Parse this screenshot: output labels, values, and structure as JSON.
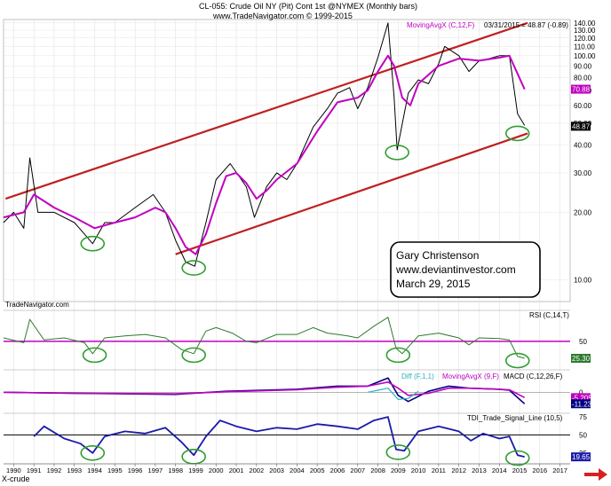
{
  "header": {
    "line1": "CL-055:  Crude Oil NY (Pit) Cont 1st @NYMEX  (Monthly bars)",
    "line2": "www.TradeNavigator.com © 1999-2015"
  },
  "chart_data": [
    {
      "type": "line",
      "panel": "price",
      "title": "CL-055: Crude Oil NY (Pit) Cont 1st @NYMEX (Monthly bars)",
      "scale": "log",
      "ylim": [
        8,
        145
      ],
      "xlim": [
        1989.5,
        2017.5
      ],
      "y_ticks": [
        10.0,
        20.0,
        30.0,
        40.0,
        50.0,
        60.0,
        70.0,
        80.0,
        90.0,
        100.0,
        110.0,
        120.0,
        130.0,
        140.0
      ],
      "y_tick_labels": [
        "10.00",
        "20.00",
        "30.00",
        "40.00",
        "50.00",
        "60.00",
        "70.00",
        "80.00",
        "90.00",
        "100.00",
        "110.00",
        "120.00",
        "130.00",
        "140.00"
      ],
      "series": [
        {
          "name": "Crude Oil",
          "color": "#000000",
          "x": [
            1989.5,
            1990.0,
            1990.5,
            1990.8,
            1991.2,
            1992.0,
            1993.0,
            1993.5,
            1993.9,
            1994.5,
            1995.0,
            1996.0,
            1996.9,
            1997.5,
            1998.0,
            1998.5,
            1998.95,
            1999.5,
            2000.0,
            2000.7,
            2001.5,
            2001.9,
            2002.5,
            2003.0,
            2003.5,
            2004.0,
            2004.8,
            2005.5,
            2006.0,
            2006.6,
            2007.0,
            2007.5,
            2008.0,
            2008.5,
            2008.8,
            2008.95,
            2009.5,
            2010.0,
            2010.5,
            2011.0,
            2011.3,
            2012.0,
            2012.5,
            2013.0,
            2013.5,
            2014.0,
            2014.5,
            2014.9,
            2015.25
          ],
          "values": [
            18,
            20,
            17,
            35,
            20,
            20,
            18,
            16,
            14.5,
            18,
            18,
            21,
            24,
            20,
            15,
            12,
            11.5,
            18,
            28,
            33,
            26,
            19,
            26,
            30,
            28,
            33,
            48,
            58,
            68,
            72,
            58,
            72,
            98,
            140,
            65,
            38,
            68,
            78,
            75,
            92,
            110,
            100,
            85,
            95,
            97,
            100,
            100,
            55,
            48.87
          ]
        },
        {
          "name": "MovingAvgX (C,12,F)",
          "color": "#c000c0",
          "x": [
            1989.5,
            1990.5,
            1991.0,
            1992.0,
            1993.0,
            1994.0,
            1995.0,
            1996.0,
            1997.0,
            1997.5,
            1998.0,
            1998.5,
            1999.0,
            1999.5,
            2000.0,
            2000.5,
            2001.0,
            2001.5,
            2002.0,
            2002.5,
            2003.0,
            2004.0,
            2005.0,
            2006.0,
            2007.0,
            2007.5,
            2008.0,
            2008.5,
            2008.8,
            2009.2,
            2009.6,
            2010.0,
            2011.0,
            2012.0,
            2013.0,
            2014.0,
            2014.5,
            2015.25
          ],
          "values": [
            19,
            20,
            24,
            21,
            19,
            17,
            18,
            19,
            21,
            20,
            17,
            14,
            13,
            16,
            22,
            29,
            30,
            27,
            23,
            25,
            28,
            33,
            46,
            62,
            65,
            70,
            85,
            100,
            90,
            65,
            60,
            75,
            90,
            97,
            95,
            98,
            100,
            70.88
          ]
        }
      ],
      "trendlines": [
        {
          "name": "upper channel",
          "color": "#c02020",
          "x": [
            1989.6,
            2015.4
          ],
          "values": [
            23,
            140
          ]
        },
        {
          "name": "lower channel",
          "color": "#c02020",
          "x": [
            1998.0,
            2015.4
          ],
          "values": [
            13,
            45
          ]
        }
      ],
      "highlight_circles_at": [
        {
          "x": 1993.9,
          "y": 14.5
        },
        {
          "x": 1998.9,
          "y": 11.3
        },
        {
          "x": 2008.95,
          "y": 37
        },
        {
          "x": 2014.9,
          "y": 45
        }
      ],
      "annotations": [
        {
          "text": "MovingAvgX (C,12,F)",
          "color": "#c000c0"
        },
        {
          "text": "03/31/2015 = 48.87 (-0.89)",
          "color": "#000000"
        },
        {
          "text": "70.88",
          "color": "#c000c0",
          "badge": true
        },
        {
          "text": "48.87",
          "color": "#ffffff",
          "badge": true,
          "badge_color": "#000000"
        },
        {
          "text": "TradeNavigator.com",
          "color": "#000000"
        }
      ],
      "textbox": [
        "Gary Christenson",
        "www.deviantinvestor.com",
        "March 29, 2015"
      ]
    },
    {
      "type": "line",
      "panel": "rsi",
      "title": "RSI (C,14,T)",
      "ylim": [
        15,
        95
      ],
      "y_ticks": [
        50
      ],
      "y_tick_labels": [
        "50"
      ],
      "reference_line": {
        "value": 50,
        "color": "#c000c0"
      },
      "series": [
        {
          "name": "RSI (C,14,T)",
          "color": "#2d7a2d",
          "x": [
            1989.5,
            1990.5,
            1990.8,
            1991.5,
            1992.5,
            1993.5,
            1993.9,
            1994.5,
            1995.5,
            1996.5,
            1997.5,
            1998.3,
            1998.9,
            1999.5,
            2000.0,
            2000.8,
            2001.5,
            2002.0,
            2003.0,
            2004.0,
            2004.8,
            2005.5,
            2006.5,
            2007.0,
            2007.8,
            2008.5,
            2008.9,
            2009.2,
            2010.0,
            2011.0,
            2012.0,
            2012.5,
            2013.0,
            2014.0,
            2014.5,
            2014.9,
            2015.25
          ],
          "values": [
            55,
            48,
            82,
            52,
            55,
            48,
            32,
            55,
            58,
            60,
            55,
            38,
            32,
            65,
            70,
            62,
            50,
            48,
            60,
            60,
            70,
            62,
            58,
            55,
            72,
            85,
            40,
            32,
            58,
            62,
            55,
            45,
            55,
            54,
            52,
            28,
            25.3
          ]
        }
      ],
      "highlight_circles_at": [
        {
          "x": 1994.0,
          "y": 30
        },
        {
          "x": 1998.9,
          "y": 30
        },
        {
          "x": 2009.0,
          "y": 30
        },
        {
          "x": 2014.9,
          "y": 22
        }
      ],
      "last_value_label": "25.30"
    },
    {
      "type": "line",
      "panel": "macd",
      "title": "MACD (C,12,26,F)",
      "ylim": [
        -24,
        22
      ],
      "y_ticks": [
        0,
        -5.205
      ],
      "y_tick_labels": [
        "0",
        "-5.2050"
      ],
      "series": [
        {
          "name": "MACD (C,12,26,F)",
          "color": "#000080",
          "x": [
            1989.5,
            1993.0,
            1998.0,
            2000.5,
            2004.0,
            2006.0,
            2007.5,
            2008.5,
            2009.0,
            2009.5,
            2010.5,
            2011.5,
            2012.5,
            2014.0,
            2014.5,
            2015.25
          ],
          "values": [
            0,
            -1,
            -2,
            1,
            3,
            6,
            6,
            14,
            -3,
            -9,
            1,
            6,
            4,
            3,
            2,
            -11.23
          ]
        },
        {
          "name": "MovingAvgX (9,F)",
          "color": "#c000c0",
          "x": [
            1989.5,
            1993.0,
            1998.0,
            2000.5,
            2004.0,
            2006.0,
            2007.5,
            2008.5,
            2009.0,
            2009.5,
            2010.5,
            2011.5,
            2012.5,
            2014.0,
            2014.5,
            2015.25
          ],
          "values": [
            0,
            -1,
            -1.5,
            0.5,
            2.5,
            5,
            6,
            10,
            4,
            -3,
            -1,
            4,
            4,
            3,
            2.5,
            -5.205
          ]
        },
        {
          "name": "Diff (F,1,1)",
          "color": "#30b0c0",
          "x": [
            2007.5,
            2008.0,
            2008.5,
            2009.0,
            2009.5,
            2010.0
          ],
          "values": [
            0,
            2,
            4,
            -7,
            -6,
            1
          ]
        }
      ],
      "last_value_labels": [
        "-5.2050",
        "-11.23"
      ]
    },
    {
      "type": "line",
      "panel": "tdi",
      "title": "TDI_Trade_Signal_Line (10,5)",
      "ylim": [
        10,
        80
      ],
      "y_ticks": [
        75,
        50,
        25
      ],
      "y_tick_labels": [
        "75",
        "50",
        "25"
      ],
      "x_ticks": [
        1990,
        1991,
        1992,
        1993,
        1994,
        1995,
        1996,
        1997,
        1998,
        1999,
        2000,
        2001,
        2002,
        2003,
        2004,
        2005,
        2006,
        2007,
        2008,
        2009,
        2010,
        2011,
        2012,
        2013,
        2014,
        2015,
        2016,
        2017
      ],
      "x_tick_labels": [
        "1990",
        "1991",
        "1992",
        "1993",
        "1994",
        "1995",
        "1996",
        "1997",
        "1998",
        "1999",
        "2000",
        "2001",
        "2002",
        "2003",
        "2004",
        "2005",
        "2006",
        "2007",
        "2008",
        "2009",
        "2010",
        "2011",
        "2012",
        "2013",
        "2014",
        "2015",
        "2016",
        "2017"
      ],
      "reference_line": {
        "value": 50,
        "color": "#000000"
      },
      "series": [
        {
          "name": "TDI_Trade_Signal_Line (10,5)",
          "color": "#1a1aaa",
          "x": [
            1991.0,
            1991.5,
            1992.5,
            1993.3,
            1993.9,
            1994.5,
            1995.5,
            1996.5,
            1997.5,
            1998.3,
            1998.9,
            1999.5,
            2000.2,
            2001.0,
            2002.0,
            2003.0,
            2004.0,
            2005.0,
            2006.0,
            2007.0,
            2007.8,
            2008.5,
            2008.9,
            2009.3,
            2010.0,
            2011.0,
            2012.0,
            2012.6,
            2013.2,
            2014.0,
            2014.5,
            2014.9,
            2015.25
          ],
          "values": [
            48,
            62,
            45,
            38,
            25,
            48,
            55,
            52,
            60,
            40,
            22,
            48,
            70,
            62,
            55,
            60,
            58,
            65,
            62,
            58,
            70,
            75,
            30,
            28,
            55,
            62,
            55,
            42,
            52,
            45,
            48,
            22,
            19.65
          ]
        }
      ],
      "highlight_circles_at": [
        {
          "x": 1993.9,
          "y": 25
        },
        {
          "x": 1998.9,
          "y": 20
        },
        {
          "x": 2009.0,
          "y": 26
        },
        {
          "x": 2014.9,
          "y": 18
        }
      ],
      "last_value_label": "19.65"
    }
  ],
  "footer": {
    "symbol_label": "X-crude"
  }
}
